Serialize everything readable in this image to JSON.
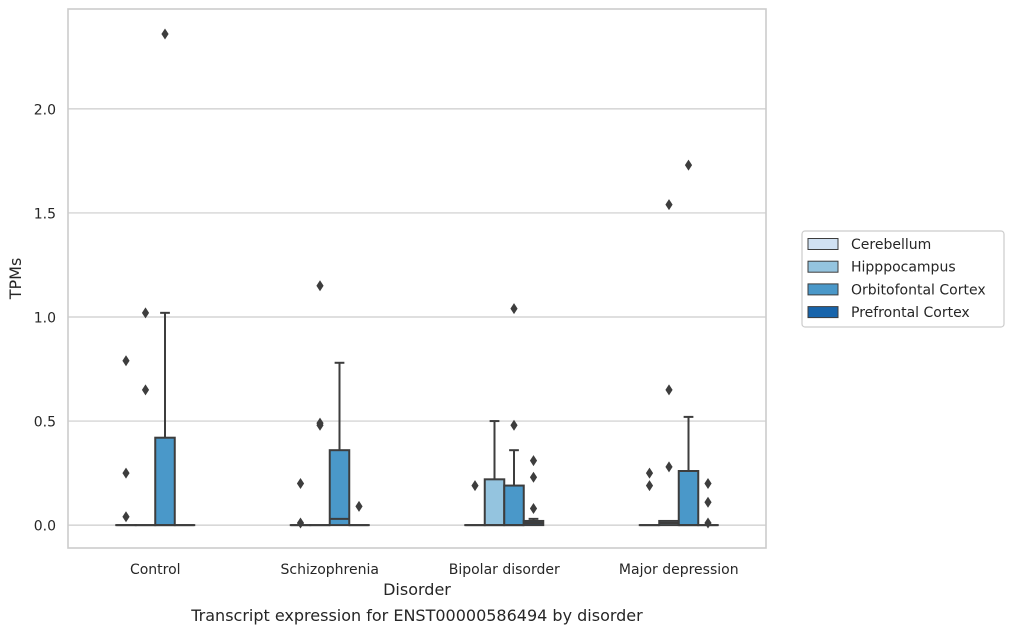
{
  "caption": "Transcript expression for ENST00000586494 by disorder",
  "colors": {
    "Cerebellum": "#d0e1f2",
    "Hipppocampus": "#94c4df",
    "Orbitofontal Cortex": "#4a98c9",
    "Prefrontal Cortex": "#1764ab",
    "line": "#3d3d3d",
    "grid": "#cccccc",
    "frame": "#cccccc"
  },
  "chart_data": {
    "type": "box",
    "xlabel": "Disorder",
    "ylabel": "TPMs",
    "ylim": [
      -0.11,
      2.48
    ],
    "yticks": [
      0.0,
      0.5,
      1.0,
      1.5,
      2.0
    ],
    "ytick_labels": [
      "0.0",
      "0.5",
      "1.0",
      "1.5",
      "2.0"
    ],
    "grid": true,
    "legend_position": "right, outside plot",
    "categories": [
      "Control",
      "Schizophrenia",
      "Bipolar disorder",
      "Major depression"
    ],
    "series": [
      {
        "name": "Cerebellum",
        "boxes": [
          {
            "q1": 0,
            "median": 0,
            "q3": 0,
            "whisker_low": 0,
            "whisker_high": 0,
            "outliers": [
              0.04,
              0.25,
              0.79
            ]
          },
          {
            "q1": 0,
            "median": 0,
            "q3": 0,
            "whisker_low": 0,
            "whisker_high": 0,
            "outliers": [
              0.01,
              0.2
            ]
          },
          {
            "q1": 0,
            "median": 0,
            "q3": 0,
            "whisker_low": 0,
            "whisker_high": 0,
            "outliers": [
              0.19
            ]
          },
          {
            "q1": 0,
            "median": 0,
            "q3": 0,
            "whisker_low": 0,
            "whisker_high": 0,
            "outliers": [
              0.19,
              0.25
            ]
          }
        ]
      },
      {
        "name": "Hipppocampus",
        "boxes": [
          {
            "q1": 0,
            "median": 0,
            "q3": 0,
            "whisker_low": 0,
            "whisker_high": 0,
            "outliers": [
              0.65,
              1.02
            ]
          },
          {
            "q1": 0,
            "median": 0,
            "q3": 0,
            "whisker_low": 0,
            "whisker_high": 0,
            "outliers": [
              0.48,
              0.49,
              1.15
            ]
          },
          {
            "q1": 0,
            "median": 0,
            "q3": 0.22,
            "whisker_low": 0,
            "whisker_high": 0.5,
            "outliers": []
          },
          {
            "q1": 0,
            "median": 0.01,
            "q3": 0.02,
            "whisker_low": 0,
            "whisker_high": 0.02,
            "outliers": [
              0.28,
              0.65,
              1.54
            ]
          }
        ]
      },
      {
        "name": "Orbitofontal Cortex",
        "boxes": [
          {
            "q1": 0,
            "median": 0,
            "q3": 0.42,
            "whisker_low": 0,
            "whisker_high": 1.02,
            "outliers": [
              2.36
            ]
          },
          {
            "q1": 0,
            "median": 0.03,
            "q3": 0.36,
            "whisker_low": 0,
            "whisker_high": 0.78,
            "outliers": []
          },
          {
            "q1": 0,
            "median": 0,
            "q3": 0.19,
            "whisker_low": 0,
            "whisker_high": 0.36,
            "outliers": [
              0.48,
              1.04
            ]
          },
          {
            "q1": 0,
            "median": 0,
            "q3": 0.26,
            "whisker_low": 0,
            "whisker_high": 0.52,
            "outliers": [
              1.73
            ]
          }
        ]
      },
      {
        "name": "Prefrontal Cortex",
        "boxes": [
          {
            "q1": 0,
            "median": 0,
            "q3": 0,
            "whisker_low": 0,
            "whisker_high": 0,
            "outliers": []
          },
          {
            "q1": 0,
            "median": 0,
            "q3": 0,
            "whisker_low": 0,
            "whisker_high": 0,
            "outliers": [
              0.09
            ]
          },
          {
            "q1": 0,
            "median": 0.01,
            "q3": 0.02,
            "whisker_low": 0,
            "whisker_high": 0.03,
            "outliers": [
              0.08,
              0.23,
              0.31
            ]
          },
          {
            "q1": 0,
            "median": 0,
            "q3": 0,
            "whisker_low": 0,
            "whisker_high": 0,
            "outliers": [
              0.01,
              0.11,
              0.2
            ]
          }
        ]
      }
    ]
  }
}
